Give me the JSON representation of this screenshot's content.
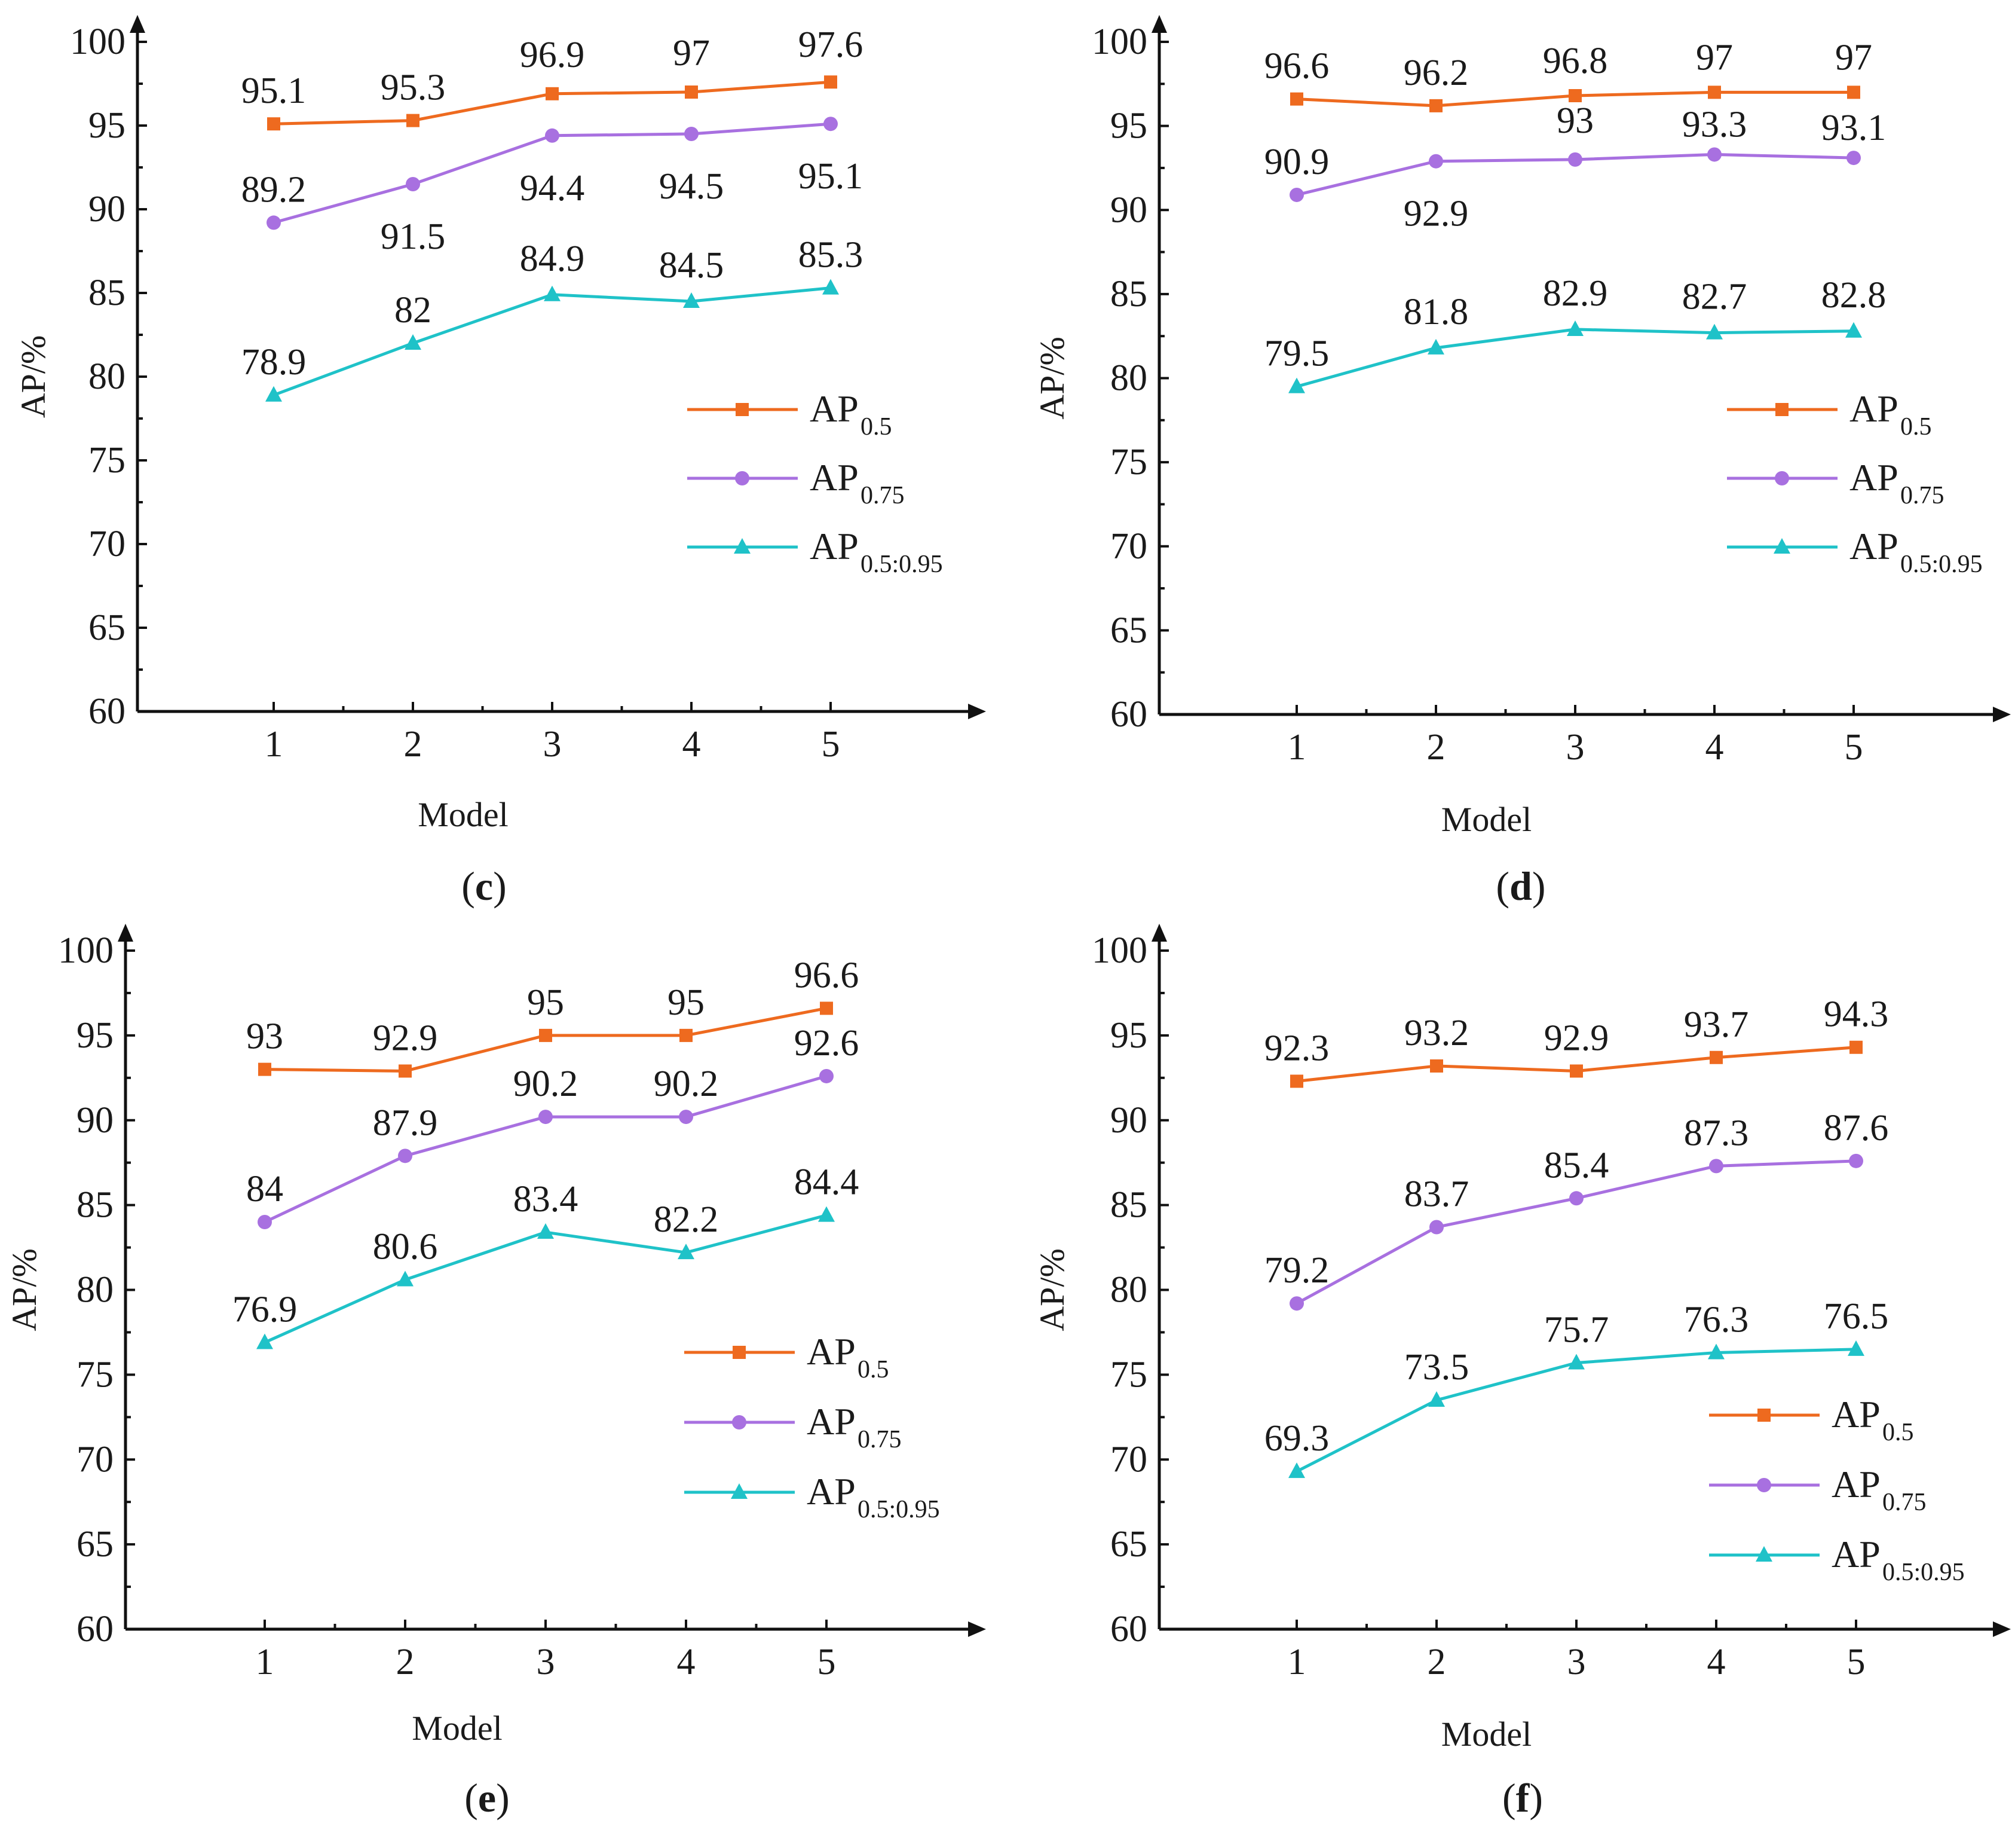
{
  "figure_captions": [
    {
      "open": "(",
      "letter": "c",
      "close": ")"
    },
    {
      "open": "(",
      "letter": "d",
      "close": ")"
    },
    {
      "open": "(",
      "letter": "e",
      "close": ")"
    },
    {
      "open": "(",
      "letter": "f",
      "close": ")"
    }
  ],
  "colors": {
    "AP_0.5": "#ee6a1f",
    "AP_0.75": "#a870e0",
    "AP_0.5:0.95": "#1fc2c8",
    "axis": "#111111"
  },
  "chart_data": [
    {
      "type": "line",
      "panel": "c",
      "ylabel": "AP/%",
      "xlabel": "Model",
      "ylim": [
        60,
        100
      ],
      "yticks": [
        60,
        65,
        70,
        75,
        80,
        85,
        90,
        95,
        100
      ],
      "categories": [
        "1",
        "2",
        "3",
        "4",
        "5"
      ],
      "legend_position": "right",
      "series": [
        {
          "name": "AP0.5",
          "legend_main": "AP",
          "legend_sub": "0.5",
          "marker": "square",
          "values": [
            95.1,
            95.3,
            96.9,
            97,
            97.6
          ],
          "labels": [
            "95.1",
            "95.3",
            "96.9",
            "97",
            "97.6"
          ]
        },
        {
          "name": "AP0.75",
          "legend_main": "AP",
          "legend_sub": "0.75",
          "marker": "circle",
          "values": [
            89.2,
            91.5,
            94.4,
            94.5,
            95.1
          ],
          "labels": [
            "89.2",
            "91.5",
            "94.4",
            "94.5",
            "95.1"
          ]
        },
        {
          "name": "AP0.5:0.95",
          "legend_main": "AP",
          "legend_sub": "0.5:0.95",
          "marker": "triangle",
          "values": [
            78.9,
            82,
            84.9,
            84.5,
            85.3
          ],
          "labels": [
            "78.9",
            "82",
            "84.9",
            "84.5",
            "85.3"
          ]
        }
      ]
    },
    {
      "type": "line",
      "panel": "d",
      "ylabel": "AP/%",
      "xlabel": "Model",
      "ylim": [
        60,
        100
      ],
      "yticks": [
        60,
        65,
        70,
        75,
        80,
        85,
        90,
        95,
        100
      ],
      "categories": [
        "1",
        "2",
        "3",
        "4",
        "5"
      ],
      "legend_position": "right",
      "series": [
        {
          "name": "AP0.5",
          "legend_main": "AP",
          "legend_sub": "0.5",
          "marker": "square",
          "values": [
            96.6,
            96.2,
            96.8,
            97,
            97
          ],
          "labels": [
            "96.6",
            "96.2",
            "96.8",
            "97",
            "97"
          ]
        },
        {
          "name": "AP0.75",
          "legend_main": "AP",
          "legend_sub": "0.75",
          "marker": "circle",
          "values": [
            90.9,
            92.9,
            93,
            93.3,
            93.1
          ],
          "labels": [
            "90.9",
            "92.9",
            "93",
            "93.3",
            "93.1"
          ]
        },
        {
          "name": "AP0.5:0.95",
          "legend_main": "AP",
          "legend_sub": "0.5:0.95",
          "marker": "triangle",
          "values": [
            79.5,
            81.8,
            82.9,
            82.7,
            82.8
          ],
          "labels": [
            "79.5",
            "81.8",
            "82.9",
            "82.7",
            "82.8"
          ]
        }
      ]
    },
    {
      "type": "line",
      "panel": "e",
      "ylabel": "AP/%",
      "xlabel": "Model",
      "ylim": [
        60,
        100
      ],
      "yticks": [
        60,
        65,
        70,
        75,
        80,
        85,
        90,
        95,
        100
      ],
      "categories": [
        "1",
        "2",
        "3",
        "4",
        "5"
      ],
      "legend_position": "bottom-right",
      "series": [
        {
          "name": "AP0.5",
          "legend_main": "AP",
          "legend_sub": "0.5",
          "marker": "square",
          "values": [
            93,
            92.9,
            95,
            95,
            96.6
          ],
          "labels": [
            "93",
            "92.9",
            "95",
            "95",
            "96.6"
          ]
        },
        {
          "name": "AP0.75",
          "legend_main": "AP",
          "legend_sub": "0.75",
          "marker": "circle",
          "values": [
            84,
            87.9,
            90.2,
            90.2,
            92.6
          ],
          "labels": [
            "84",
            "87.9",
            "90.2",
            "90.2",
            "92.6"
          ]
        },
        {
          "name": "AP0.5:0.95",
          "legend_main": "AP",
          "legend_sub": "0.5:0.95",
          "marker": "triangle",
          "values": [
            76.9,
            80.6,
            83.4,
            82.2,
            84.4
          ],
          "labels": [
            "76.9",
            "80.6",
            "83.4",
            "82.2",
            "84.4"
          ]
        }
      ]
    },
    {
      "type": "line",
      "panel": "f",
      "ylabel": "AP/%",
      "xlabel": "Model",
      "ylim": [
        60,
        100
      ],
      "yticks": [
        60,
        65,
        70,
        75,
        80,
        85,
        90,
        95,
        100
      ],
      "categories": [
        "1",
        "2",
        "3",
        "4",
        "5"
      ],
      "legend_position": "bottom-right",
      "series": [
        {
          "name": "AP0.5",
          "legend_main": "AP",
          "legend_sub": "0.5",
          "marker": "square",
          "values": [
            92.3,
            93.2,
            92.9,
            93.7,
            94.3
          ],
          "labels": [
            "92.3",
            "93.2",
            "92.9",
            "93.7",
            "94.3"
          ]
        },
        {
          "name": "AP0.75",
          "legend_main": "AP",
          "legend_sub": "0.75",
          "marker": "circle",
          "values": [
            79.2,
            83.7,
            85.4,
            87.3,
            87.6
          ],
          "labels": [
            "79.2",
            "83.7",
            "85.4",
            "87.3",
            "87.6"
          ]
        },
        {
          "name": "AP0.5:0.95",
          "legend_main": "AP",
          "legend_sub": "0.5:0.95",
          "marker": "triangle",
          "values": [
            69.3,
            73.5,
            75.7,
            76.3,
            76.5
          ],
          "labels": [
            "69.3",
            "73.5",
            "75.7",
            "76.3",
            "76.5"
          ]
        }
      ]
    }
  ]
}
